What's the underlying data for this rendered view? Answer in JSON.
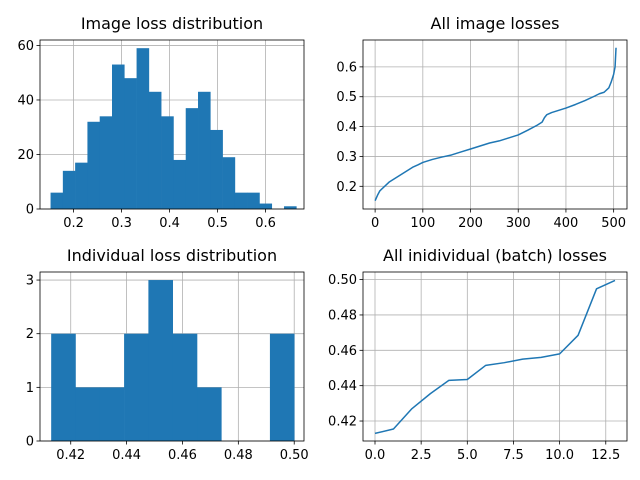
{
  "chart_data": [
    {
      "type": "bar",
      "title": "Image loss distribution",
      "xlabel": "",
      "ylabel": "",
      "xlim": [
        0.13,
        0.68
      ],
      "ylim": [
        0,
        62
      ],
      "grid": true,
      "xticks": [
        0.2,
        0.3,
        0.4,
        0.5,
        0.6
      ],
      "xtick_labels": [
        "0.2",
        "0.3",
        "0.4",
        "0.5",
        "0.6"
      ],
      "yticks": [
        0,
        20,
        40,
        60
      ],
      "ytick_labels": [
        "0",
        "20",
        "40",
        "60"
      ],
      "bin_edges": [
        0.152,
        0.1776,
        0.2032,
        0.2288,
        0.2544,
        0.28,
        0.3056,
        0.3312,
        0.3568,
        0.3824,
        0.408,
        0.4336,
        0.4592,
        0.4848,
        0.5104,
        0.536,
        0.5616,
        0.5872,
        0.6128,
        0.6384,
        0.664
      ],
      "counts": [
        6,
        14,
        17,
        32,
        34,
        53,
        48,
        59,
        43,
        34,
        18,
        37,
        43,
        29,
        19,
        6,
        6,
        2,
        0,
        1
      ],
      "color": "#1f77b4"
    },
    {
      "type": "line",
      "title": "All image losses",
      "xlabel": "",
      "ylabel": "",
      "xlim": [
        -25.4,
        528
      ],
      "ylim": [
        0.124,
        0.69
      ],
      "grid": true,
      "xticks": [
        0,
        100,
        200,
        300,
        400,
        500
      ],
      "xtick_labels": [
        "0",
        "100",
        "200",
        "300",
        "400",
        "500"
      ],
      "yticks": [
        0.2,
        0.3,
        0.4,
        0.5,
        0.6
      ],
      "ytick_labels": [
        "0.2",
        "0.3",
        "0.4",
        "0.5",
        "0.6"
      ],
      "x": [
        0,
        5,
        10,
        20,
        30,
        40,
        50,
        60,
        70,
        80,
        90,
        100,
        110,
        120,
        140,
        160,
        180,
        200,
        220,
        240,
        260,
        280,
        300,
        320,
        340,
        350,
        355,
        360,
        370,
        380,
        400,
        420,
        440,
        460,
        470,
        480,
        490,
        495,
        500,
        503,
        505
      ],
      "y": [
        0.152,
        0.17,
        0.185,
        0.2,
        0.215,
        0.225,
        0.235,
        0.245,
        0.255,
        0.265,
        0.272,
        0.28,
        0.285,
        0.29,
        0.298,
        0.305,
        0.315,
        0.325,
        0.335,
        0.345,
        0.352,
        0.362,
        0.372,
        0.388,
        0.405,
        0.415,
        0.43,
        0.44,
        0.447,
        0.452,
        0.462,
        0.474,
        0.487,
        0.502,
        0.51,
        0.515,
        0.53,
        0.55,
        0.575,
        0.6,
        0.664
      ],
      "color": "#1f77b4"
    },
    {
      "type": "bar",
      "title": "Individual loss distribution",
      "xlabel": "",
      "ylabel": "",
      "xlim": [
        0.409,
        0.5035
      ],
      "ylim": [
        0,
        3.15
      ],
      "grid": true,
      "xticks": [
        0.42,
        0.44,
        0.46,
        0.48,
        0.5
      ],
      "xtick_labels": [
        "0.42",
        "0.44",
        "0.46",
        "0.48",
        "0.50"
      ],
      "yticks": [
        0,
        1,
        2,
        3
      ],
      "ytick_labels": [
        "0",
        "1",
        "2",
        "3"
      ],
      "bin_edges": [
        0.413,
        0.4217,
        0.4304,
        0.4391,
        0.4478,
        0.4565,
        0.4652,
        0.4739,
        0.4826,
        0.4913,
        0.5
      ],
      "counts": [
        2,
        1,
        1,
        2,
        3,
        2,
        1,
        0,
        0,
        2
      ],
      "color": "#1f77b4"
    },
    {
      "type": "line",
      "title": "All inidividual (batch) losses",
      "xlabel": "",
      "ylabel": "",
      "xlim": [
        -0.65,
        13.65
      ],
      "ylim": [
        0.4087,
        0.5043
      ],
      "grid": true,
      "xticks": [
        0,
        2.5,
        5,
        7.5,
        10,
        12.5
      ],
      "xtick_labels": [
        "0.0",
        "2.5",
        "5.0",
        "7.5",
        "10.0",
        "12.5"
      ],
      "yticks": [
        0.42,
        0.44,
        0.46,
        0.48,
        0.5
      ],
      "ytick_labels": [
        "0.42",
        "0.44",
        "0.46",
        "0.48",
        "0.50"
      ],
      "x": [
        0,
        1,
        2,
        3,
        4,
        5,
        6,
        7,
        8,
        9,
        10,
        11,
        12,
        13
      ],
      "y": [
        0.413,
        0.4155,
        0.427,
        0.4355,
        0.443,
        0.4435,
        0.4515,
        0.453,
        0.455,
        0.456,
        0.458,
        0.4685,
        0.4948,
        0.4995
      ],
      "color": "#1f77b4"
    }
  ]
}
